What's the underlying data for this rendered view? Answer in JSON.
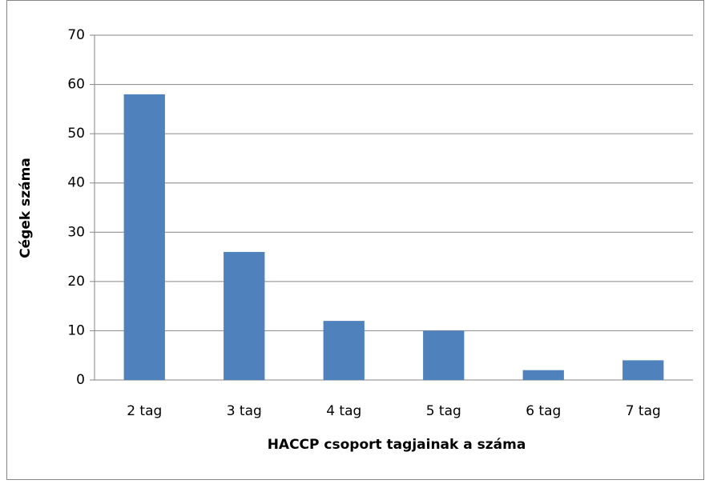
{
  "chart_data": {
    "type": "bar",
    "x_label": "HACCP csoport tagjainak a száma",
    "y_label": "Cégek száma",
    "categories": [
      "2 tag",
      "3 tag",
      "4 tag",
      "5 tag",
      "6 tag",
      "7 tag"
    ],
    "values": [
      58,
      26,
      12,
      10,
      2,
      4
    ],
    "color": "#4f81bd",
    "ylim": [
      0,
      70
    ],
    "yticks": [
      0,
      10,
      20,
      30,
      40,
      50,
      60,
      70
    ],
    "grid": true
  }
}
